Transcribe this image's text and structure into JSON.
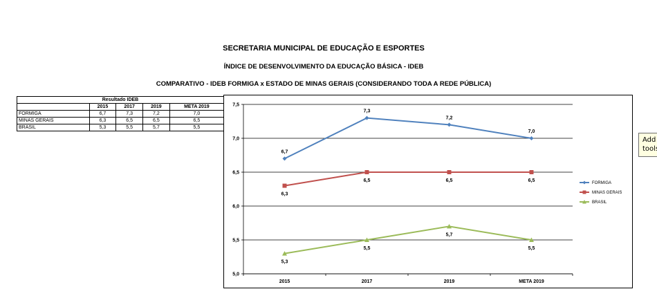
{
  "titles": {
    "line1": "SECRETARIA MUNICIPAL DE EDUCAÇÃO E ESPORTES",
    "line2": "ÍNDICE DE DESENVOLVIMENTO DA EDUCAÇÃO BÁSICA - IDEB",
    "line3": "COMPARATIVO - IDEB FORMIGA x ESTADO DE MINAS GERAIS (CONSIDERANDO TODA A REDE PÚBLICA)"
  },
  "table": {
    "caption": "Resultado IDEB",
    "headers": [
      "2015",
      "2017",
      "2019",
      "META 2019"
    ],
    "rows": [
      {
        "label": "FORMIGA",
        "values": [
          "6,7",
          "7,3",
          "7,2",
          "7,0"
        ]
      },
      {
        "label": "MINAS GERAIS",
        "values": [
          "6,3",
          "6,5",
          "6,5",
          "6,5"
        ]
      },
      {
        "label": "BRASIL",
        "values": [
          "5,3",
          "5,5",
          "5,7",
          "5,5"
        ]
      }
    ]
  },
  "tooltip": {
    "line1": "Add comm",
    "line2": "tools"
  },
  "chart_data": {
    "type": "line",
    "categories": [
      "2015",
      "2017",
      "2019",
      "META 2019"
    ],
    "ylim": [
      5.0,
      7.5
    ],
    "yticks": [
      "5,0",
      "5,5",
      "6,0",
      "6,5",
      "7,0",
      "7,5"
    ],
    "grid": true,
    "legend_position": "right",
    "series": [
      {
        "name": "FORMIGA",
        "color": "#4f81bd",
        "marker": "diamond",
        "values": [
          6.7,
          7.3,
          7.2,
          7.0
        ],
        "labels": [
          "6,7",
          "7,3",
          "7,2",
          "7,0"
        ],
        "label_pos": "above"
      },
      {
        "name": "MINAS GERAIS",
        "color": "#c0504d",
        "marker": "square",
        "values": [
          6.3,
          6.5,
          6.5,
          6.5
        ],
        "labels": [
          "6,3",
          "6,5",
          "6,5",
          "6,5"
        ],
        "label_pos": "below"
      },
      {
        "name": "BRASIL",
        "color": "#9bbb59",
        "marker": "triangle",
        "values": [
          5.3,
          5.5,
          5.7,
          5.5
        ],
        "labels": [
          "5,3",
          "5,5",
          "5,7",
          "5,5"
        ],
        "label_pos": "below"
      }
    ]
  }
}
